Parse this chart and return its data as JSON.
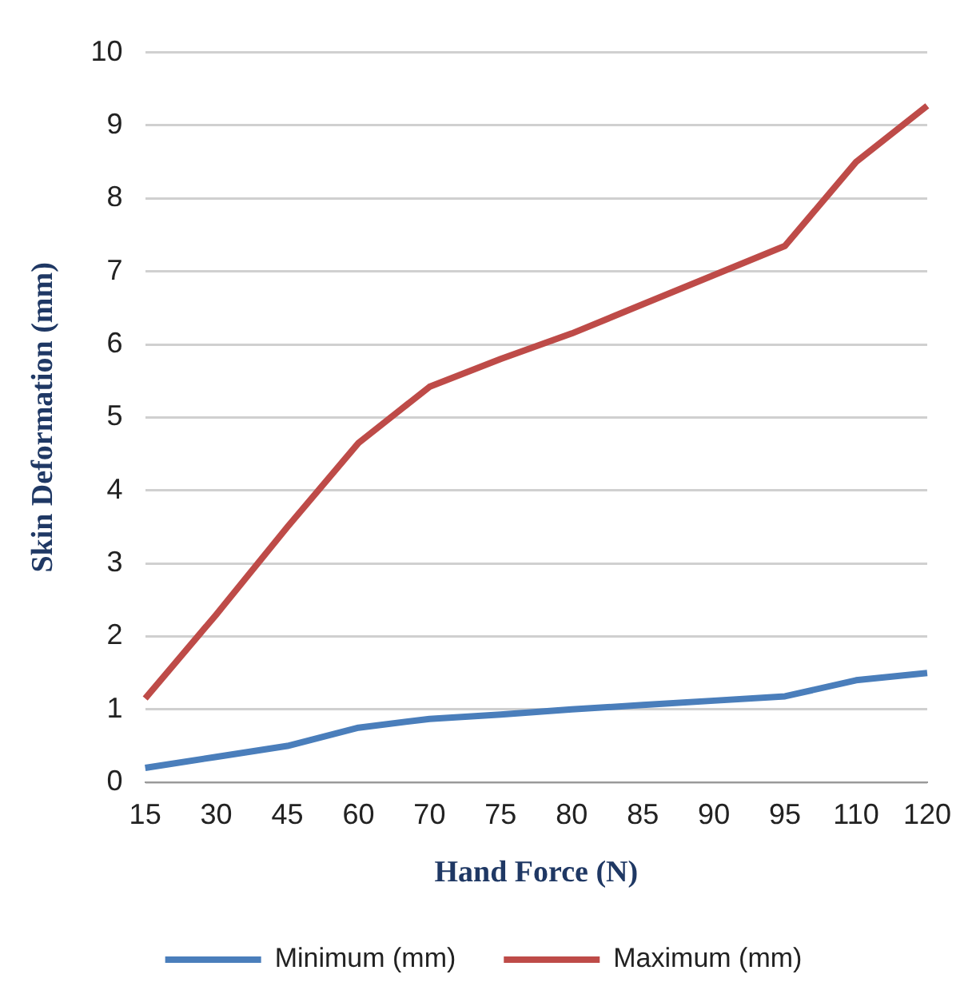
{
  "chart_data": {
    "type": "line",
    "xlabel": "Hand Force (N)",
    "ylabel": "Skin Deformation (mm)",
    "categories": [
      "15",
      "30",
      "45",
      "60",
      "70",
      "75",
      "80",
      "85",
      "90",
      "95",
      "110",
      "120"
    ],
    "series": [
      {
        "name": "Minimum (mm)",
        "color": "#4a7ebb",
        "values": [
          0.2,
          0.35,
          0.5,
          0.75,
          0.87,
          0.93,
          1.0,
          1.06,
          1.12,
          1.18,
          1.4,
          1.5
        ]
      },
      {
        "name": "Maximum (mm)",
        "color": "#be4b48",
        "values": [
          1.15,
          2.3,
          3.5,
          4.65,
          5.42,
          5.8,
          6.15,
          6.55,
          6.95,
          7.35,
          8.5,
          9.27
        ]
      }
    ],
    "ylim": [
      0,
      10
    ],
    "yticks": [
      0,
      1,
      2,
      3,
      4,
      5,
      6,
      7,
      8,
      9,
      10
    ],
    "grid": "y",
    "legend": "bottom",
    "marker": "none",
    "line_style": "solid"
  }
}
